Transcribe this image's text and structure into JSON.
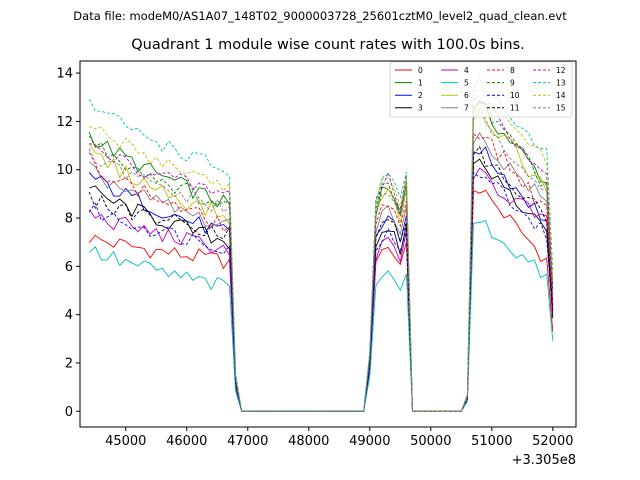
{
  "figure": {
    "suptitle": "Data file: modeM0/AS1A07_148T02_9000003728_25601cztM0_level2_quad_clean.evt",
    "title": "Quadrant 1 module wise count rates with 100.0s bins."
  },
  "chart_data": {
    "type": "line",
    "title": "Quadrant 1 module wise count rates with 100.0s bins.",
    "xlabel": "",
    "ylabel": "",
    "x_offset_label": "+3.305e8",
    "xlim": [
      44250,
      52380
    ],
    "ylim": [
      -0.65,
      14.5
    ],
    "xticks": [
      45000,
      46000,
      47000,
      48000,
      49000,
      50000,
      51000,
      52000
    ],
    "xtick_labels": [
      "45000",
      "46000",
      "47000",
      "48000",
      "49000",
      "50000",
      "51000",
      "52000"
    ],
    "yticks": [
      0,
      2,
      4,
      6,
      8,
      10,
      12,
      14
    ],
    "ytick_labels": [
      "0",
      "2",
      "4",
      "6",
      "8",
      "10",
      "12",
      "14"
    ],
    "grid": false,
    "legend": "top-right",
    "legend_ncols": 4,
    "segments": [
      {
        "start": 44400,
        "end": 46700,
        "step": 100,
        "type": "high",
        "decay": 0.25,
        "after": [
          [
            46800,
            0.16
          ],
          [
            46900,
            0.0
          ]
        ]
      },
      {
        "start": 47000,
        "end": 48800,
        "step": 100,
        "type": "zero"
      },
      {
        "start": 48900,
        "end": 48900,
        "step": 100,
        "type": "zero"
      },
      {
        "start": 49000,
        "end": 49600,
        "step": 100,
        "type": "mid",
        "values_scale": [
          0.23,
          0.82,
          0.9,
          0.92,
          0.88,
          0.8,
          0.93
        ]
      },
      {
        "start": 49700,
        "end": 50500,
        "step": 100,
        "type": "zero"
      },
      {
        "start": 50600,
        "end": 50700,
        "step": 100,
        "type": "rise",
        "values_scale": [
          0.05,
          0.95
        ]
      },
      {
        "start": 50800,
        "end": 52000,
        "step": 100,
        "type": "high2"
      }
    ],
    "series": [
      {
        "name": "0",
        "color": "#ff0000",
        "style": "solid",
        "base": [
          7.2,
          6.2,
          7.4,
          6.0
        ]
      },
      {
        "name": "1",
        "color": "#008000",
        "style": "solid",
        "base": [
          11.5,
          8.5,
          10.1,
          9.2
        ]
      },
      {
        "name": "2",
        "color": "#0000ff",
        "style": "solid",
        "base": [
          9.8,
          7.3,
          8.7,
          7.6
        ]
      },
      {
        "name": "3",
        "color": "#000000",
        "style": "solid",
        "base": [
          9.2,
          7.0,
          8.3,
          7.0
        ]
      },
      {
        "name": "4",
        "color": "#bf00bf",
        "style": "solid",
        "base": [
          8.2,
          6.7,
          7.8,
          7.6
        ]
      },
      {
        "name": "5",
        "color": "#00bfbf",
        "style": "solid",
        "base": [
          6.7,
          5.1,
          6.3,
          5.3
        ]
      },
      {
        "name": "6",
        "color": "#bfbf00",
        "style": "solid",
        "base": [
          10.8,
          8.0,
          10.0,
          8.8
        ]
      },
      {
        "name": "7",
        "color": "#808080",
        "style": "solid",
        "base": [
          10.0,
          7.6,
          9.0,
          8.4
        ]
      },
      {
        "name": "8",
        "color": "#ff0000",
        "style": "dashed",
        "base": [
          10.4,
          7.6,
          9.3,
          8.0
        ]
      },
      {
        "name": "9",
        "color": "#008000",
        "style": "dashed",
        "base": [
          11.3,
          8.4,
          10.2,
          9.0
        ]
      },
      {
        "name": "10",
        "color": "#0000ff",
        "style": "dashed",
        "base": [
          8.4,
          6.8,
          8.0,
          7.2
        ]
      },
      {
        "name": "11",
        "color": "#000000",
        "style": "dashed",
        "base": [
          8.8,
          7.4,
          8.6,
          7.7
        ]
      },
      {
        "name": "12",
        "color": "#bf00bf",
        "style": "dashed",
        "base": [
          11.0,
          8.9,
          10.5,
          9.4
        ]
      },
      {
        "name": "13",
        "color": "#00bfbf",
        "style": "dashed",
        "base": [
          12.8,
          9.9,
          10.8,
          10.6
        ]
      },
      {
        "name": "14",
        "color": "#bfbf00",
        "style": "dashed",
        "base": [
          11.9,
          9.3,
          10.6,
          10.0
        ]
      },
      {
        "name": "15",
        "color": "#808080",
        "style": "dashed",
        "base": [
          10.6,
          8.3,
          9.8,
          8.8
        ]
      }
    ]
  }
}
